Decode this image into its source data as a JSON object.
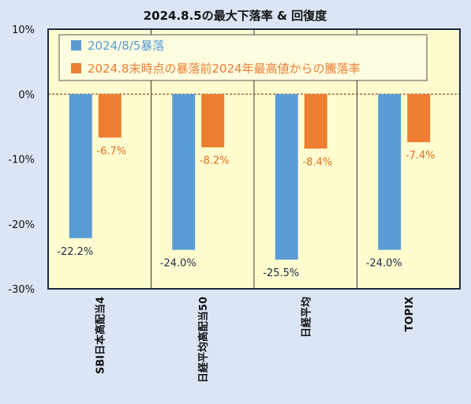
{
  "chart_data": {
    "type": "bar",
    "title": "2024.8.5の最大下落率 & 回復度",
    "categories": [
      "SBI日本高配当4",
      "日経平均高配当50",
      "日経平均",
      "TOPIX"
    ],
    "series": [
      {
        "name": "2024/8/5暴落",
        "color": "#5b9bd5",
        "values": [
          -22.2,
          -24.0,
          -25.5,
          -24.0
        ]
      },
      {
        "name": "2024.8末時点の暴落前2024年最高値からの騰落率",
        "color": "#ed7d31",
        "values": [
          -6.7,
          -8.2,
          -8.4,
          -7.4
        ]
      }
    ],
    "data_labels": [
      [
        "-22.2%",
        "-24.0%",
        "-25.5%",
        "-24.0%"
      ],
      [
        "-6.7%",
        "-8.2%",
        "-8.4%",
        "-7.4%"
      ]
    ],
    "ylim": [
      -30,
      10
    ],
    "yticks": [
      10,
      0,
      -10,
      -20,
      -30
    ],
    "ytick_labels": [
      "10%",
      "0%",
      "-10%",
      "-20%",
      "-30%"
    ],
    "legend_position": "top-left",
    "zero_line": "dashed",
    "plot_background": "#fffdd0",
    "page_background": "#dbe5f4"
  }
}
